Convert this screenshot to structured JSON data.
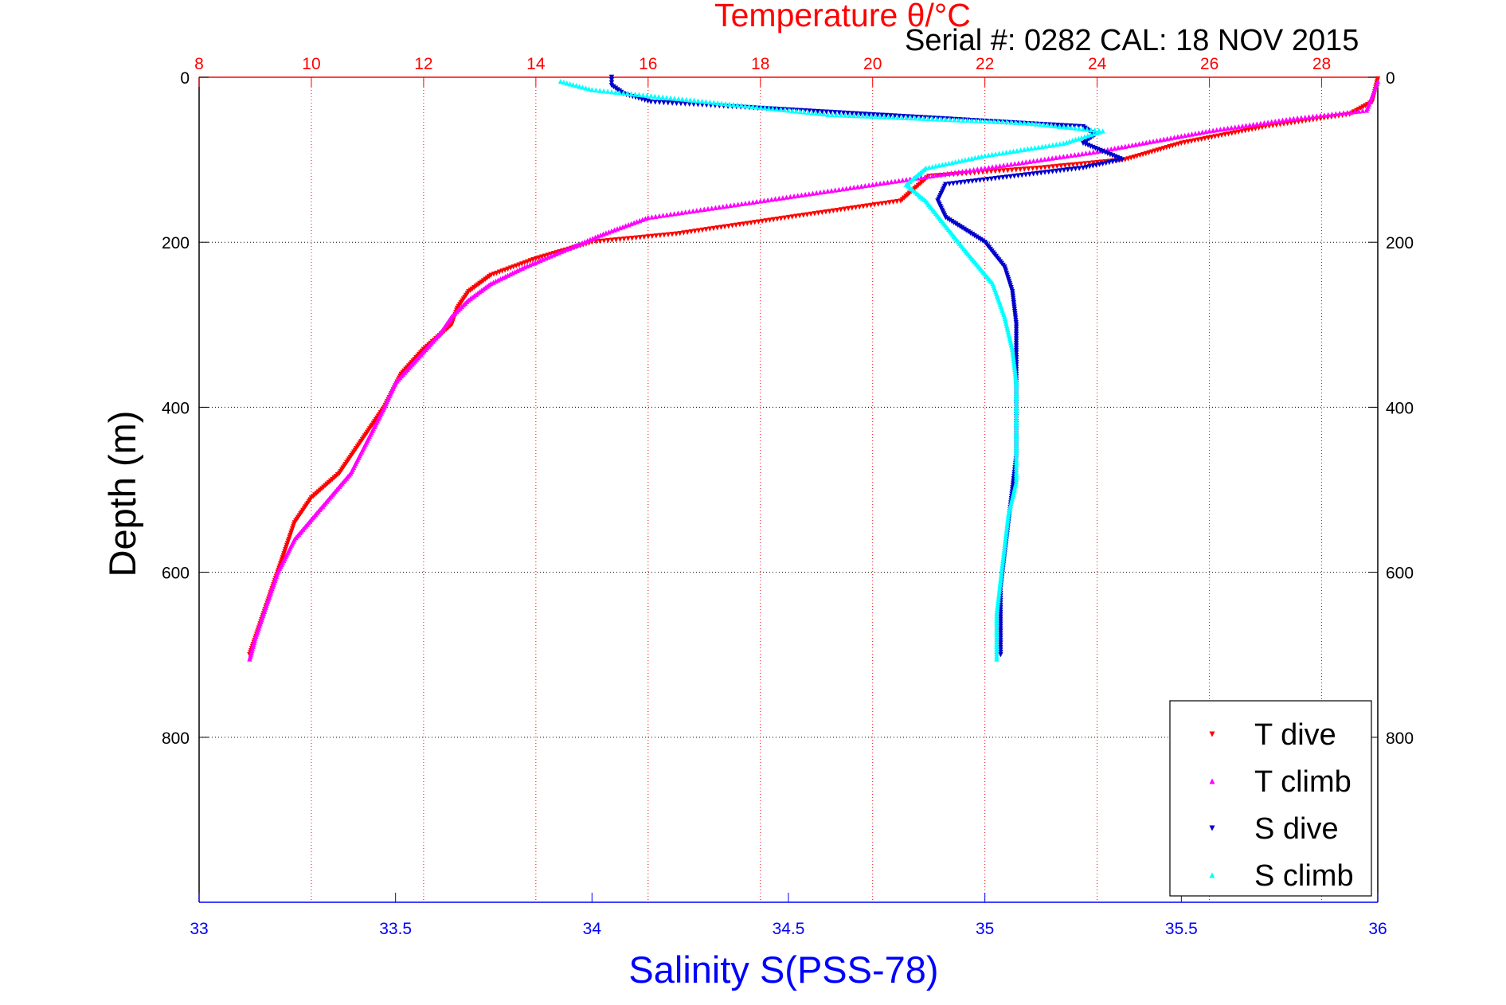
{
  "chart_data": {
    "type": "scatter",
    "title": "Temperature θ/°C",
    "subtitle": "Serial #: 0282  CAL: 18 NOV 2015",
    "xlabel_bottom": "Salinity S(PSS-78)",
    "xlabel_top": "Temperature θ/°C",
    "ylabel": "Depth (m)",
    "x_top_range": [
      8,
      29
    ],
    "x_top_ticks": [
      "8",
      "10",
      "12",
      "14",
      "16",
      "18",
      "20",
      "22",
      "24",
      "26",
      "28"
    ],
    "x_bottom_range": [
      33,
      36
    ],
    "x_bottom_ticks": [
      "33",
      "33.5",
      "34",
      "34.5",
      "35",
      "35.5",
      "36"
    ],
    "y_range": [
      0,
      1000
    ],
    "y_reversed": true,
    "y_ticks": [
      "0",
      "200",
      "400",
      "600",
      "800"
    ],
    "grid": true,
    "legend_position": "bottom-right",
    "colors": {
      "t_dive": "#ff0000",
      "t_climb": "#ff00ff",
      "s_dive": "#0000cc",
      "s_climb": "#00ffff",
      "grid_temp": "#ff0000",
      "grid_depth": "#000000",
      "axis_bottom": "#0000ff"
    },
    "series": [
      {
        "name": "T dive",
        "axis": "temperature",
        "marker": "triangle-down",
        "depth": [
          2,
          30,
          45,
          60,
          80,
          100,
          110,
          120,
          150,
          170,
          190,
          200,
          220,
          240,
          260,
          280,
          300,
          330,
          360,
          400,
          450,
          480,
          510,
          540,
          580,
          620,
          660,
          700
        ],
        "values": [
          29.0,
          28.9,
          28.5,
          27.0,
          25.5,
          24.5,
          23.0,
          21.0,
          20.5,
          18.5,
          16.5,
          15.0,
          14.0,
          13.2,
          12.8,
          12.6,
          12.5,
          12.0,
          11.6,
          11.3,
          10.8,
          10.5,
          10.0,
          9.7,
          9.5,
          9.3,
          9.1,
          8.9
        ]
      },
      {
        "name": "T climb",
        "axis": "temperature",
        "marker": "triangle-up",
        "depth": [
          5,
          40,
          50,
          65,
          90,
          110,
          130,
          150,
          170,
          190,
          210,
          230,
          250,
          270,
          290,
          310,
          340,
          370,
          400,
          440,
          480,
          520,
          560,
          600,
          640,
          680,
          705
        ],
        "values": [
          29.0,
          28.8,
          27.5,
          26.0,
          24.0,
          22.0,
          20.0,
          18.0,
          16.0,
          15.2,
          14.5,
          13.8,
          13.2,
          12.8,
          12.5,
          12.3,
          11.9,
          11.5,
          11.3,
          11.0,
          10.7,
          10.2,
          9.7,
          9.4,
          9.2,
          9.0,
          8.9
        ]
      },
      {
        "name": "S dive",
        "axis": "salinity",
        "marker": "triangle-down",
        "depth": [
          0,
          10,
          20,
          30,
          60,
          70,
          80,
          90,
          100,
          110,
          130,
          150,
          170,
          200,
          230,
          260,
          300,
          340,
          380,
          420,
          460,
          500,
          540,
          580,
          620,
          660,
          700
        ],
        "values": [
          34.05,
          34.05,
          34.08,
          34.15,
          35.25,
          35.28,
          35.25,
          35.3,
          35.35,
          35.25,
          34.9,
          34.88,
          34.9,
          35.0,
          35.05,
          35.07,
          35.08,
          35.08,
          35.08,
          35.08,
          35.08,
          35.07,
          35.06,
          35.05,
          35.04,
          35.04,
          35.04
        ]
      },
      {
        "name": "S climb",
        "axis": "salinity",
        "marker": "triangle-up",
        "depth": [
          5,
          15,
          30,
          45,
          55,
          65,
          80,
          95,
          110,
          130,
          150,
          180,
          210,
          250,
          290,
          330,
          370,
          410,
          450,
          490,
          530,
          570,
          610,
          650,
          690,
          705
        ],
        "values": [
          33.92,
          34.0,
          34.3,
          34.6,
          35.1,
          35.3,
          35.2,
          35.0,
          34.85,
          34.8,
          34.85,
          34.9,
          34.95,
          35.02,
          35.05,
          35.07,
          35.08,
          35.08,
          35.08,
          35.08,
          35.06,
          35.05,
          35.04,
          35.03,
          35.03,
          35.03
        ]
      }
    ],
    "legend": [
      "T dive",
      "T climb",
      "S dive",
      "S climb"
    ]
  }
}
